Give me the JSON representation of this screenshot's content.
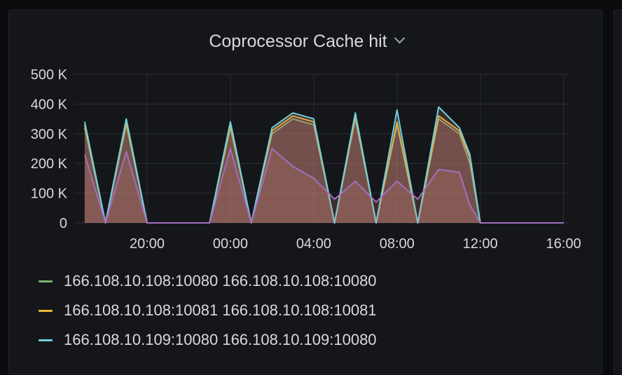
{
  "panel": {
    "title": "Coprocessor Cache hit"
  },
  "chart_data": {
    "type": "area",
    "title": "Coprocessor Cache hit",
    "xlabel": "",
    "ylabel": "",
    "ylim": [
      0,
      500000
    ],
    "x_ticks": [
      "20:00",
      "00:00",
      "04:00",
      "08:00",
      "12:00",
      "16:00"
    ],
    "y_ticks": [
      "0",
      "100 K",
      "200 K",
      "300 K",
      "400 K",
      "500 K"
    ],
    "x_hours": [
      "17:00",
      "18:00",
      "19:00",
      "20:00",
      "21:00",
      "22:00",
      "23:00",
      "00:00",
      "01:00",
      "02:00",
      "03:00",
      "04:00",
      "05:00",
      "06:00",
      "07:00",
      "08:00",
      "09:00",
      "10:00",
      "11:00",
      "11:30",
      "12:00",
      "16:00"
    ],
    "series": [
      {
        "name": "166.108.10.108:10080 166.108.10.108:10080",
        "color": "#7eb26d",
        "values": [
          320000,
          0,
          330000,
          0,
          0,
          0,
          0,
          320000,
          0,
          300000,
          350000,
          330000,
          0,
          350000,
          0,
          330000,
          0,
          350000,
          300000,
          200000,
          0,
          0
        ]
      },
      {
        "name": "166.108.10.108:10081 166.108.10.108:10081",
        "color": "#eab839",
        "values": [
          330000,
          0,
          340000,
          0,
          0,
          0,
          0,
          330000,
          0,
          310000,
          360000,
          340000,
          0,
          360000,
          0,
          340000,
          0,
          360000,
          310000,
          220000,
          0,
          0
        ]
      },
      {
        "name": "166.108.10.109:10080 166.108.10.109:10080",
        "color": "#6ed0e0",
        "values": [
          340000,
          0,
          350000,
          0,
          0,
          0,
          0,
          340000,
          0,
          320000,
          370000,
          350000,
          0,
          370000,
          0,
          380000,
          0,
          390000,
          320000,
          230000,
          0,
          0
        ]
      },
      {
        "values": [
          230000,
          0,
          240000,
          0,
          0,
          0,
          0,
          250000,
          0,
          250000,
          190000,
          150000,
          80000,
          140000,
          70000,
          140000,
          80000,
          180000,
          170000,
          60000,
          0,
          0
        ]
      }
    ],
    "legend_position": "bottom",
    "grid": true
  }
}
